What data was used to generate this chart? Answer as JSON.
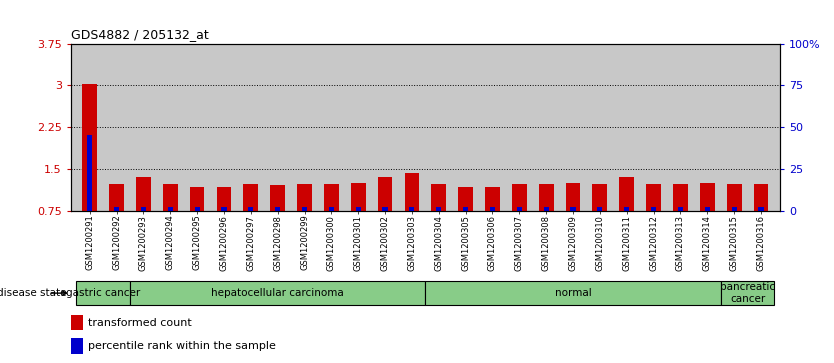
{
  "title": "GDS4882 / 205132_at",
  "samples": [
    "GSM1200291",
    "GSM1200292",
    "GSM1200293",
    "GSM1200294",
    "GSM1200295",
    "GSM1200296",
    "GSM1200297",
    "GSM1200298",
    "GSM1200299",
    "GSM1200300",
    "GSM1200301",
    "GSM1200302",
    "GSM1200303",
    "GSM1200304",
    "GSM1200305",
    "GSM1200306",
    "GSM1200307",
    "GSM1200308",
    "GSM1200309",
    "GSM1200310",
    "GSM1200311",
    "GSM1200312",
    "GSM1200313",
    "GSM1200314",
    "GSM1200315",
    "GSM1200316"
  ],
  "transformed_count": [
    3.02,
    1.22,
    1.35,
    1.22,
    1.18,
    1.18,
    1.22,
    1.2,
    1.22,
    1.22,
    1.25,
    1.35,
    1.42,
    1.22,
    1.18,
    1.18,
    1.22,
    1.22,
    1.25,
    1.22,
    1.35,
    1.22,
    1.22,
    1.25,
    1.22,
    1.22
  ],
  "percentile_rank_values": [
    45,
    2,
    2,
    2,
    2,
    2,
    2,
    2,
    2,
    2,
    2,
    2,
    2,
    2,
    2,
    2,
    2,
    2,
    2,
    2,
    2,
    2,
    2,
    2,
    2,
    2
  ],
  "ylim_left": [
    0.75,
    3.75
  ],
  "ylim_right": [
    0,
    100
  ],
  "yticks_left": [
    0.75,
    1.5,
    2.25,
    3.0,
    3.75
  ],
  "yticks_right": [
    0,
    25,
    50,
    75,
    100
  ],
  "ytick_labels_left": [
    "0.75",
    "1.5",
    "2.25",
    "3",
    "3.75"
  ],
  "ytick_labels_right": [
    "0",
    "25",
    "50",
    "75",
    "100%"
  ],
  "disease_state_groups": [
    {
      "label": "gastric cancer",
      "start": 0,
      "end": 2
    },
    {
      "label": "hepatocellular carcinoma",
      "start": 2,
      "end": 13
    },
    {
      "label": "normal",
      "start": 13,
      "end": 24
    },
    {
      "label": "pancreatic\ncancer",
      "start": 24,
      "end": 26
    }
  ],
  "bar_color": "#cc0000",
  "percentile_color": "#0000cc",
  "bg_color": "#c8c8c8",
  "disease_bg_color": "#88cc88",
  "left_tick_color": "#cc0000",
  "right_tick_color": "#0000cc",
  "bar_width": 0.55,
  "figsize": [
    8.34,
    3.63
  ],
  "dpi": 100
}
